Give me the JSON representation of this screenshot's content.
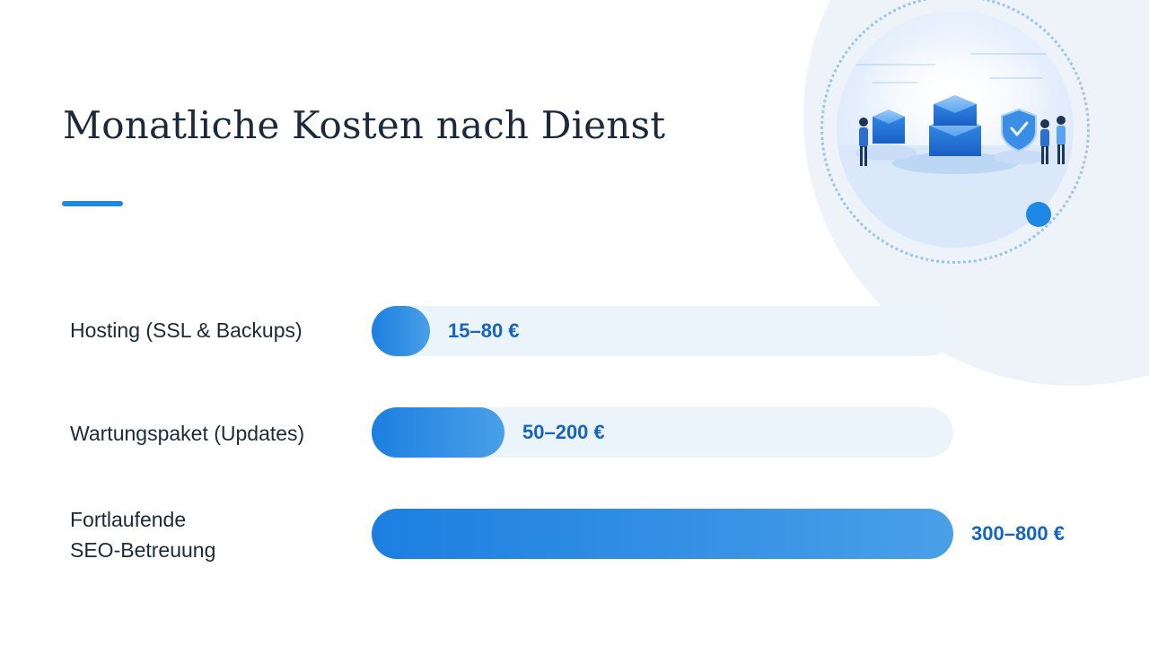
{
  "slide": {
    "title": "Monatliche Kosten nach Dienst"
  },
  "colors": {
    "accent": "#1e88e5",
    "bar_start": "#1c7fe0",
    "bar_end": "#4a9fe8",
    "track": "#ebf3fb",
    "value_text": "#1565c0",
    "title_text": "#1b2a3a",
    "decor_background": "#eef3fa"
  },
  "illustration": {
    "icon": "server-security-illustration"
  },
  "chart_data": {
    "type": "bar",
    "orientation": "horizontal",
    "title": "",
    "xlabel": "",
    "ylabel": "",
    "xlim": [
      0,
      800
    ],
    "grid": false,
    "categories": [
      "Hosting (SSL & Backups)",
      "Wartungspaket (Updates)",
      "Fortlaufende\nSEO-Betreuung"
    ],
    "ranges": [
      [
        15,
        80
      ],
      [
        50,
        200
      ],
      [
        300,
        800
      ]
    ],
    "values": [
      80,
      200,
      800
    ],
    "value_labels": [
      "15–80 €",
      "50–200 €",
      "300–800 €"
    ]
  }
}
